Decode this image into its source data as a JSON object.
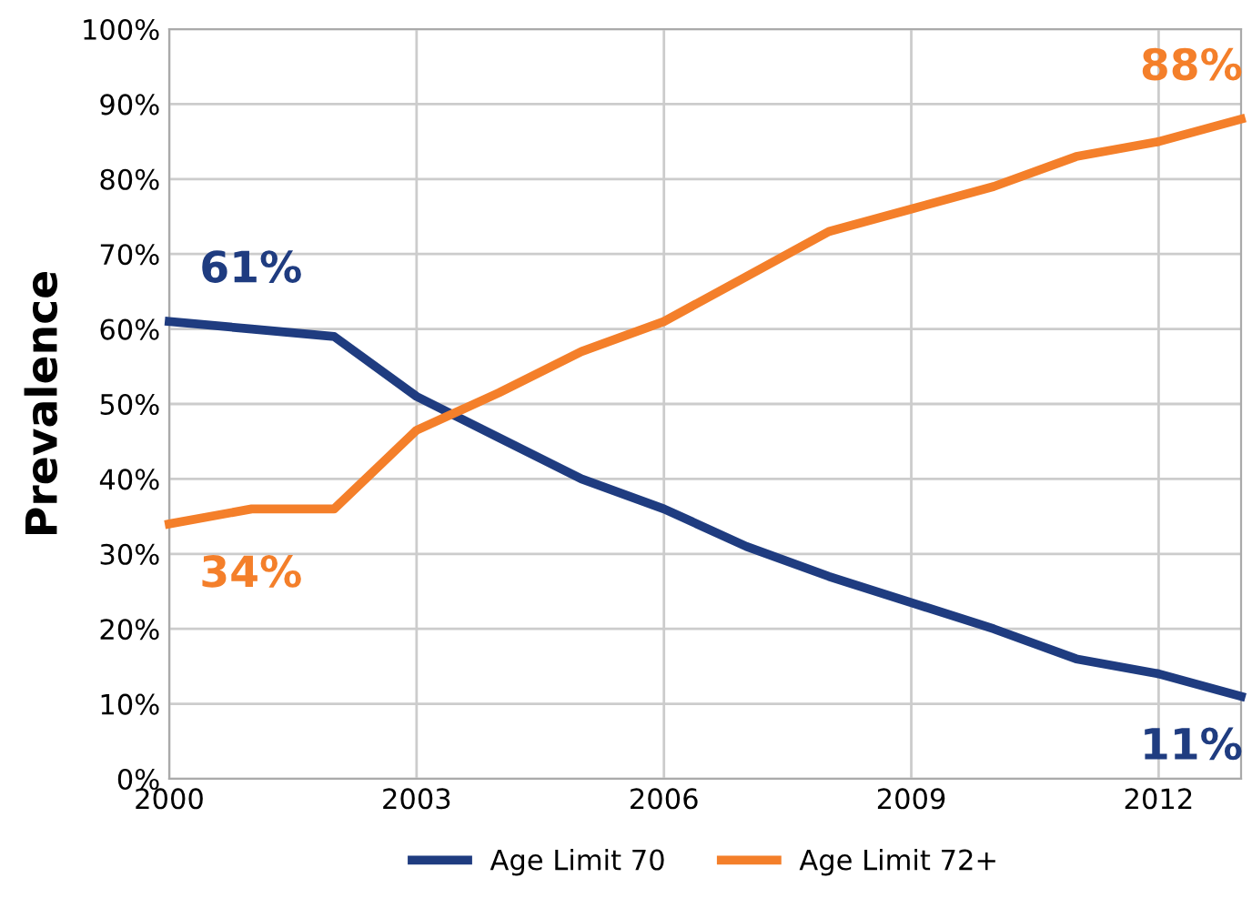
{
  "chart_data": {
    "type": "line",
    "ylabel": "Prevalence",
    "x": [
      2000,
      2001,
      2002,
      2003,
      2004,
      2005,
      2006,
      2007,
      2008,
      2009,
      2010,
      2011,
      2012,
      2013
    ],
    "series": [
      {
        "name": "Age Limit 70",
        "color": "#1f3c80",
        "values": [
          61,
          60,
          59,
          51,
          45.5,
          40,
          36,
          31,
          27,
          23.5,
          20,
          16,
          14,
          11
        ],
        "value_labels": [
          "61%",
          null,
          null,
          null,
          null,
          null,
          null,
          null,
          null,
          null,
          null,
          null,
          null,
          "11%"
        ]
      },
      {
        "name": "Age Limit 72+",
        "color": "#f47f2a",
        "values": [
          34,
          36,
          36,
          46.5,
          51.5,
          57,
          61,
          67,
          73,
          76,
          79,
          83,
          85,
          88
        ],
        "value_labels": [
          "34%",
          null,
          null,
          null,
          null,
          null,
          null,
          null,
          null,
          null,
          null,
          null,
          null,
          "88%"
        ]
      }
    ],
    "xlim": [
      2000,
      2013
    ],
    "xticks": [
      2000,
      2003,
      2006,
      2009,
      2012
    ],
    "ylim": [
      0,
      100
    ],
    "yticks": [
      {
        "value": 0,
        "label": "0%"
      },
      {
        "value": 10,
        "label": "10%"
      },
      {
        "value": 20,
        "label": "20%"
      },
      {
        "value": 30,
        "label": "30%"
      },
      {
        "value": 40,
        "label": "40%"
      },
      {
        "value": 50,
        "label": "50%"
      },
      {
        "value": 60,
        "label": "60%"
      },
      {
        "value": 70,
        "label": "70%"
      },
      {
        "value": 80,
        "label": "80%"
      },
      {
        "value": 90,
        "label": "90%"
      },
      {
        "value": 100,
        "label": "100%"
      }
    ],
    "grid": true,
    "legend": "bottom",
    "marker": "none",
    "line_style": "solid"
  }
}
